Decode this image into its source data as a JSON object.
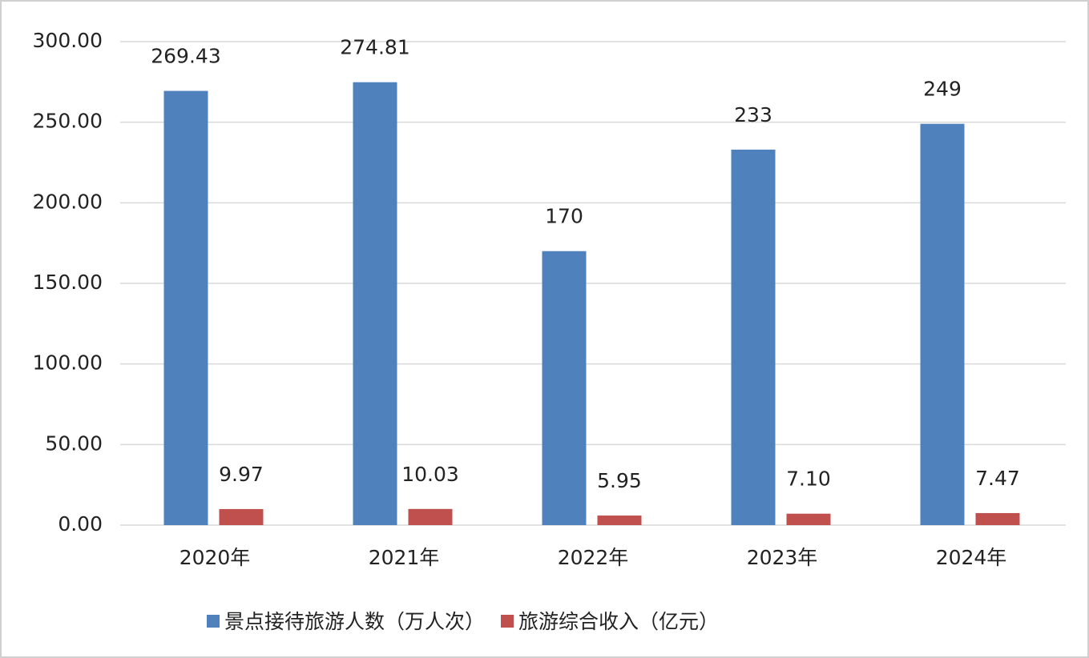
{
  "chart_data": {
    "type": "bar",
    "categories": [
      "2020年",
      "2021年",
      "2022年",
      "2023年",
      "2024年"
    ],
    "series": [
      {
        "name": "景点接待旅游人数（万人次）",
        "color": "#4f81bd",
        "values": [
          269.43,
          274.81,
          170,
          233,
          249
        ]
      },
      {
        "name": "旅游综合收入（亿元）",
        "color": "#c0504d",
        "values": [
          9.97,
          10.03,
          5.95,
          7.1,
          7.47
        ],
        "value_labels": [
          "9.97",
          "10.03",
          "5.95",
          "7.10",
          "7.47"
        ]
      }
    ],
    "ylim": [
      0,
      300
    ],
    "yticks": [
      {
        "value": 0,
        "label": "0.00"
      },
      {
        "value": 50,
        "label": "50.00"
      },
      {
        "value": 100,
        "label": "100.00"
      },
      {
        "value": 150,
        "label": "150.00"
      },
      {
        "value": 200,
        "label": "200.00"
      },
      {
        "value": 250,
        "label": "250.00"
      },
      {
        "value": 300,
        "label": "300.00"
      }
    ],
    "grid": true,
    "legend": "bottom"
  }
}
